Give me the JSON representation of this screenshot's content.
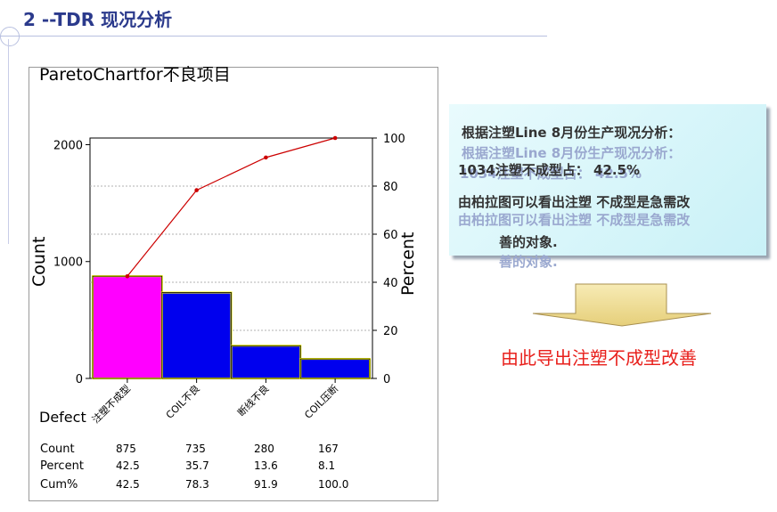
{
  "slide": {
    "title": "2 --TDR 现况分析"
  },
  "chart_data": {
    "type": "bar",
    "title": "ParetoChartfor不良项目",
    "categories": [
      "注塑不成型",
      "COIL不良",
      "断线不良",
      "COIL压断"
    ],
    "series": [
      {
        "name": "Count",
        "values": [
          875,
          735,
          280,
          167
        ],
        "colors": [
          "#ff00ff",
          "#0000ee",
          "#0000ee",
          "#0000ee"
        ]
      },
      {
        "name": "Cum%",
        "values": [
          42.5,
          78.3,
          91.9,
          100.0
        ],
        "type": "line",
        "color": "#cc0000"
      }
    ],
    "ylabel_left": "Count",
    "ylabel_right": "Percent",
    "xlabel": "Defect",
    "ylim_left": [
      0,
      2057
    ],
    "ylim_right": [
      0,
      100
    ],
    "yticks_left": [
      "0",
      "1000",
      "2000"
    ],
    "yticks_right": [
      "0",
      "20",
      "40",
      "60",
      "80",
      "100"
    ],
    "grid": true,
    "table": {
      "row_labels": [
        "Count",
        "Percent",
        "Cum%"
      ],
      "rows": [
        [
          "875",
          "735",
          "280",
          "167"
        ],
        [
          "42.5",
          "35.7",
          "13.6",
          "8.1"
        ],
        [
          "42.5",
          "78.3",
          "91.9",
          "100.0"
        ]
      ]
    }
  },
  "info": {
    "line1": "根据注塑Line 8月份生产现况分析：",
    "line2": "1034注塑不成型占：  42.5%",
    "line3": "由柏拉图可以看出注塑 不成型是急需改",
    "line4": "善的对象."
  },
  "conclusion": "由此导出注塑不成型改善",
  "colors": {
    "title": "#2b3a8c",
    "conclusion": "#e8201c",
    "arrow": "#f3e3a0"
  }
}
